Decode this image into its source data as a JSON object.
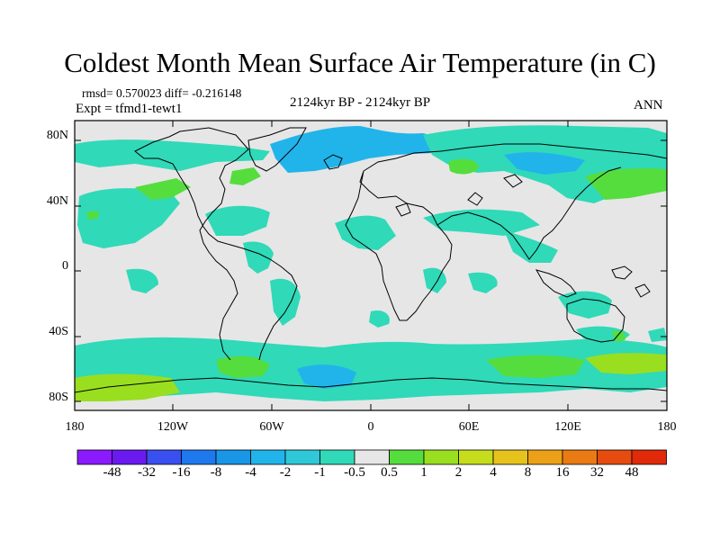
{
  "title": "Coldest Month Mean Surface Air Temperature (in C)",
  "stats_text": "rmsd= 0.570023  diff= -0.216148",
  "expt_text": "Expt = tfmd1-tewt1",
  "period_text": "2124kyr BP - 2124kyr BP",
  "season_text": "ANN",
  "y_axis_labels": [
    "80N",
    "40N",
    "0",
    "40S",
    "80S"
  ],
  "x_axis_labels": [
    "180",
    "120W",
    "60W",
    "0",
    "60E",
    "120E",
    "180"
  ],
  "colorbar": {
    "colors": [
      "#8c1aff",
      "#6a1aee",
      "#3a4ff0",
      "#1e78ee",
      "#1996e6",
      "#21b4ea",
      "#2ec8d8",
      "#30d9b8",
      "#e6e6e6",
      "#55dd3d",
      "#9ade20",
      "#c6dd1e",
      "#e6c21c",
      "#eca018",
      "#ea7a14",
      "#e64c10",
      "#e02a0a"
    ],
    "labels": [
      "-48",
      "-32",
      "-16",
      "-8",
      "-4",
      "-2",
      "-1",
      "-0.5",
      "0.5",
      "1",
      "2",
      "4",
      "8",
      "16",
      "32",
      "48"
    ]
  },
  "colors": {
    "background": "#e6e6e6",
    "weak_negative": "#30d9b8",
    "moderate_negative": "#21b4ea",
    "strong_negative": "#1996e6",
    "weak_positive": "#55dd3d",
    "moderate_positive": "#9ade20",
    "strong_positive": "#c6dd1e",
    "coast": "#000000"
  }
}
